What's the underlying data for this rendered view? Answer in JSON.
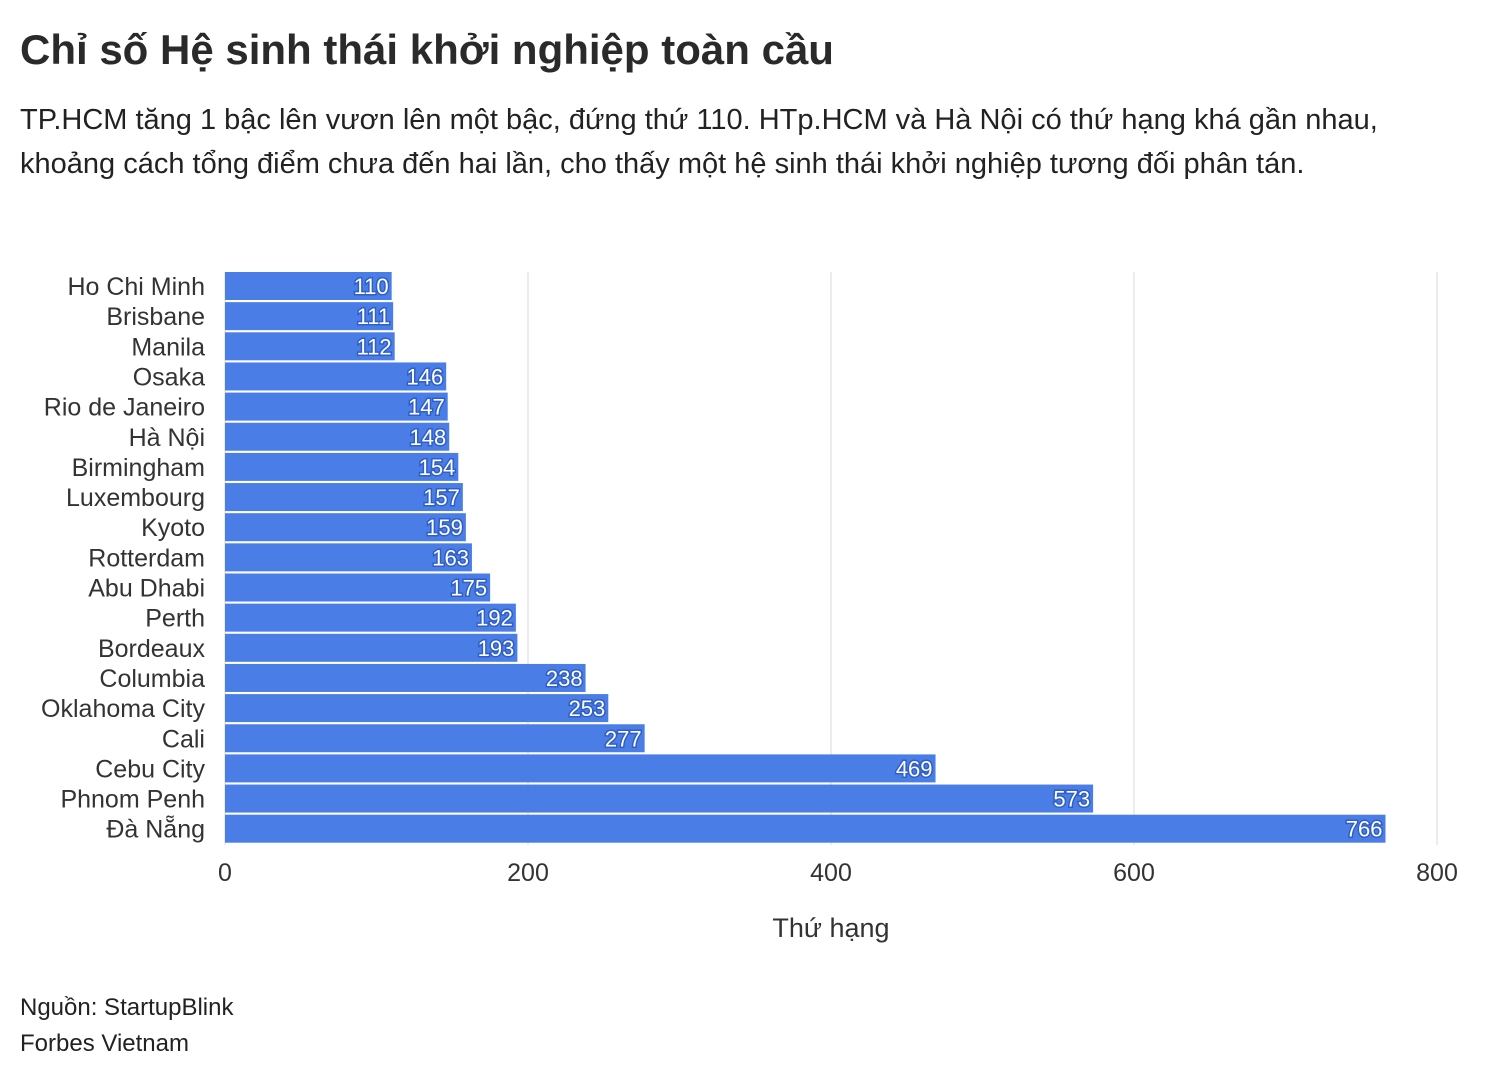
{
  "header": {
    "title": "Chỉ số Hệ sinh thái khởi nghiệp toàn cầu",
    "subtitle": "TP.HCM tăng 1 bậc lên vươn lên một bậc, đứng thứ 110. HTp.HCM và Hà Nội có thứ hạng khá gần nhau, khoảng cách tổng điểm chưa đến hai lần, cho thấy một hệ sinh thái khởi nghiệp tương đối phân tán."
  },
  "footer": {
    "source": "Nguồn: StartupBlink",
    "publisher": "Forbes Vietnam"
  },
  "colors": {
    "bar": "#4a7de6",
    "grid": "#e6e6e6",
    "label_text": "#ffffff",
    "label_outline": "#2f5fc4"
  },
  "chart_data": {
    "type": "bar",
    "orientation": "horizontal",
    "categories": [
      "Ho Chi Minh",
      "Brisbane",
      "Manila",
      "Osaka",
      "Rio de Janeiro",
      "Hà Nội",
      "Birmingham",
      "Luxembourg",
      "Kyoto",
      "Rotterdam",
      "Abu Dhabi",
      "Perth",
      "Bordeaux",
      "Columbia",
      "Oklahoma City",
      "Cali",
      "Cebu City",
      "Phnom Penh",
      "Đà Nẵng"
    ],
    "values": [
      110,
      111,
      112,
      146,
      147,
      148,
      154,
      157,
      159,
      163,
      175,
      192,
      193,
      238,
      253,
      277,
      469,
      573,
      766
    ],
    "xlabel": "Thứ hạng",
    "ylabel": "",
    "xlim": [
      0,
      800
    ],
    "xticks": [
      0,
      200,
      400,
      600,
      800
    ],
    "grid": true,
    "data_labels": true
  }
}
